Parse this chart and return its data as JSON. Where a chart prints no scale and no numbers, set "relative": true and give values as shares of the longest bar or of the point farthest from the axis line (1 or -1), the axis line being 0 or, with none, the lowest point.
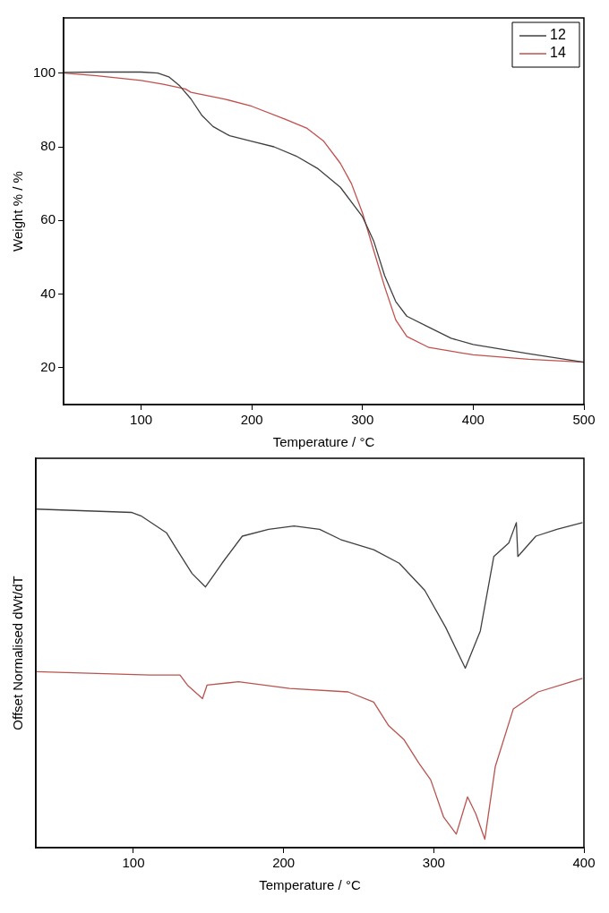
{
  "chart_data": [
    {
      "type": "line",
      "xlabel": "Temperature / °C",
      "ylabel": "Weight % / %",
      "xlim": [
        30,
        500
      ],
      "xticks": [
        100,
        200,
        300,
        400,
        500
      ],
      "ylim": [
        10,
        115
      ],
      "yticks": [
        20,
        40,
        60,
        80,
        100
      ],
      "legend": "top right",
      "marker": "none",
      "series": [
        {
          "name": "12",
          "color": "#404040",
          "x": [
            30,
            60,
            100,
            115,
            125,
            135,
            145,
            155,
            165,
            180,
            200,
            220,
            240,
            260,
            280,
            300,
            310,
            320,
            330,
            340,
            360,
            380,
            400,
            450,
            500
          ],
          "values": [
            100.2,
            100.3,
            100.3,
            100,
            99,
            96.5,
            93,
            88.5,
            85.5,
            83,
            81.5,
            80,
            77.5,
            74,
            69,
            61,
            54.5,
            45,
            38,
            34,
            31,
            28,
            26.3,
            23.8,
            21.5
          ]
        },
        {
          "name": "14",
          "color": "#c0504d",
          "x": [
            30,
            60,
            100,
            120,
            140,
            145,
            175,
            200,
            230,
            250,
            265,
            280,
            290,
            300,
            310,
            320,
            330,
            340,
            360,
            400,
            450,
            500
          ],
          "values": [
            100,
            99.3,
            98,
            97,
            95.7,
            94.8,
            93,
            91,
            87.5,
            85,
            81.5,
            75.5,
            70,
            62,
            52,
            42,
            33,
            28.5,
            25.5,
            23.5,
            22.3,
            21.5
          ]
        }
      ]
    },
    {
      "type": "line",
      "relative": true,
      "xlabel": "Temperature / °C",
      "ylabel": "Offset Normalised dWt/dT",
      "xlim": [
        35,
        400
      ],
      "xticks": [
        100,
        200,
        300,
        400
      ],
      "marker": "none",
      "series": [
        {
          "color": "#404040",
          "x": [
            35,
            99,
            105,
            122,
            129,
            139,
            148,
            159,
            172.5,
            190,
            207,
            224,
            238,
            260,
            277,
            294,
            308,
            321,
            331,
            340,
            350,
            355,
            356,
            368,
            382,
            399
          ],
          "values": [
            1.0,
            0.99,
            0.98,
            0.93,
            0.88,
            0.81,
            0.77,
            0.84,
            0.92,
            0.94,
            0.95,
            0.94,
            0.91,
            0.88,
            0.84,
            0.76,
            0.65,
            0.53,
            0.64,
            0.86,
            0.9,
            0.96,
            0.86,
            0.92,
            0.94,
            0.96
          ]
        },
        {
          "color": "#b85450",
          "x": [
            35,
            111,
            131,
            136,
            146,
            149,
            170,
            204,
            243,
            260,
            270,
            280,
            290,
            298,
            306.6,
            315,
            322.5,
            328,
            334,
            341,
            353,
            369.5,
            399
          ],
          "values": [
            0.52,
            0.51,
            0.51,
            0.48,
            0.44,
            0.48,
            0.49,
            0.47,
            0.46,
            0.43,
            0.36,
            0.32,
            0.25,
            0.2,
            0.09,
            0.04,
            0.15,
            0.1,
            0.025,
            0.24,
            0.41,
            0.46,
            0.5
          ]
        }
      ]
    }
  ]
}
